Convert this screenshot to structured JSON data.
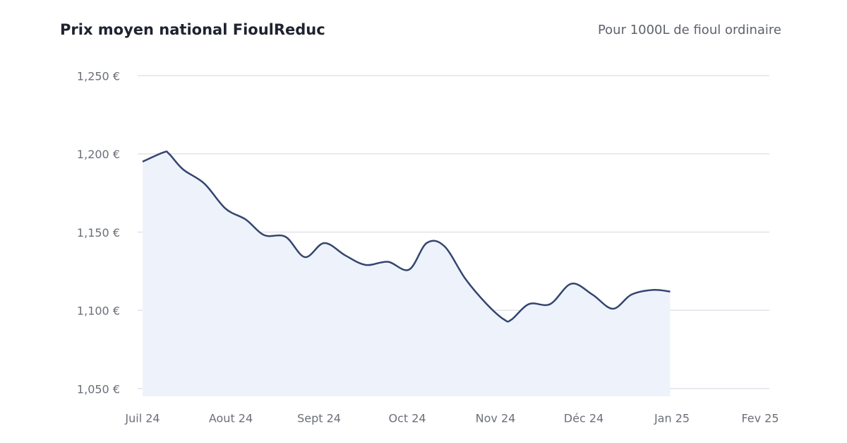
{
  "chart_data": {
    "type": "line",
    "title": "Prix moyen national FioulReduc",
    "subtitle": "Pour 1000L de fioul ordinaire",
    "x": [
      0,
      0.24,
      0.3,
      0.46,
      0.7,
      0.94,
      1.17,
      1.38,
      1.62,
      1.84,
      2.06,
      2.3,
      2.53,
      2.78,
      3.02,
      3.22,
      3.42,
      3.66,
      3.9,
      4.1,
      4.18,
      4.38,
      4.62,
      4.86,
      5.1,
      5.33,
      5.54,
      5.78,
      5.98
    ],
    "series": [
      {
        "name": "Prix moyen",
        "color": "#34456f",
        "fill": "#eef3fb",
        "values": [
          1195,
          1201,
          1200,
          1190,
          1181,
          1165,
          1158,
          1148,
          1147,
          1134,
          1143,
          1135,
          1129,
          1131,
          1126,
          1143,
          1141,
          1120,
          1104,
          1094,
          1094,
          1104,
          1104,
          1117,
          1110,
          1101,
          1110,
          1113,
          1112
        ]
      }
    ],
    "xlim": [
      0,
      7
    ],
    "xticks": [
      {
        "value": 0,
        "label": "Juil 24"
      },
      {
        "value": 1,
        "label": "Aout 24"
      },
      {
        "value": 2,
        "label": "Sept 24"
      },
      {
        "value": 3,
        "label": "Oct 24"
      },
      {
        "value": 4,
        "label": "Nov 24"
      },
      {
        "value": 5,
        "label": "Déc 24"
      },
      {
        "value": 6,
        "label": "Jan 25"
      },
      {
        "value": 7,
        "label": "Fev 25"
      }
    ],
    "ylim": [
      1045,
      1250
    ],
    "yticks": [
      {
        "value": 1050,
        "label": "1,050 €"
      },
      {
        "value": 1100,
        "label": "1,100 €"
      },
      {
        "value": 1150,
        "label": "1,150 €"
      },
      {
        "value": 1200,
        "label": "1,200 €"
      },
      {
        "value": 1250,
        "label": "1,250 €"
      }
    ],
    "grid": true
  }
}
